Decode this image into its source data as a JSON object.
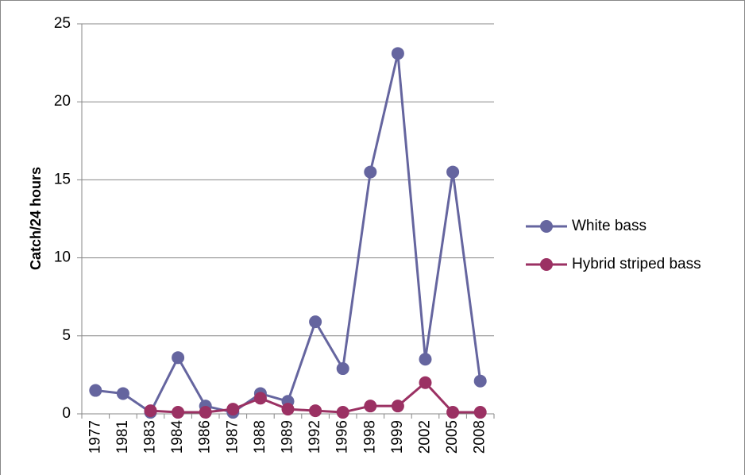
{
  "chart_data": {
    "type": "line",
    "y_label": "Catch/24 hours",
    "categories": [
      "1977",
      "1981",
      "1983",
      "1984",
      "1986",
      "1987",
      "1988",
      "1989",
      "1992",
      "1996",
      "1998",
      "1999",
      "2002",
      "2005",
      "2008"
    ],
    "series": [
      {
        "name": "White bass",
        "color": "#65659f",
        "values": [
          1.5,
          1.3,
          0.1,
          3.6,
          0.5,
          0.1,
          1.3,
          0.8,
          5.9,
          2.9,
          15.5,
          23.1,
          3.5,
          15.5,
          2.1
        ]
      },
      {
        "name": "Hybrid striped bass",
        "color": "#9b3163",
        "values": [
          null,
          null,
          0.2,
          0.1,
          0.1,
          0.3,
          1.0,
          0.3,
          0.2,
          0.1,
          0.5,
          0.5,
          2.0,
          0.1,
          0.1
        ]
      }
    ],
    "ylim": [
      0,
      25
    ],
    "yticks": [
      0,
      5,
      10,
      15,
      20,
      25
    ],
    "grid": true,
    "legend": "right"
  }
}
